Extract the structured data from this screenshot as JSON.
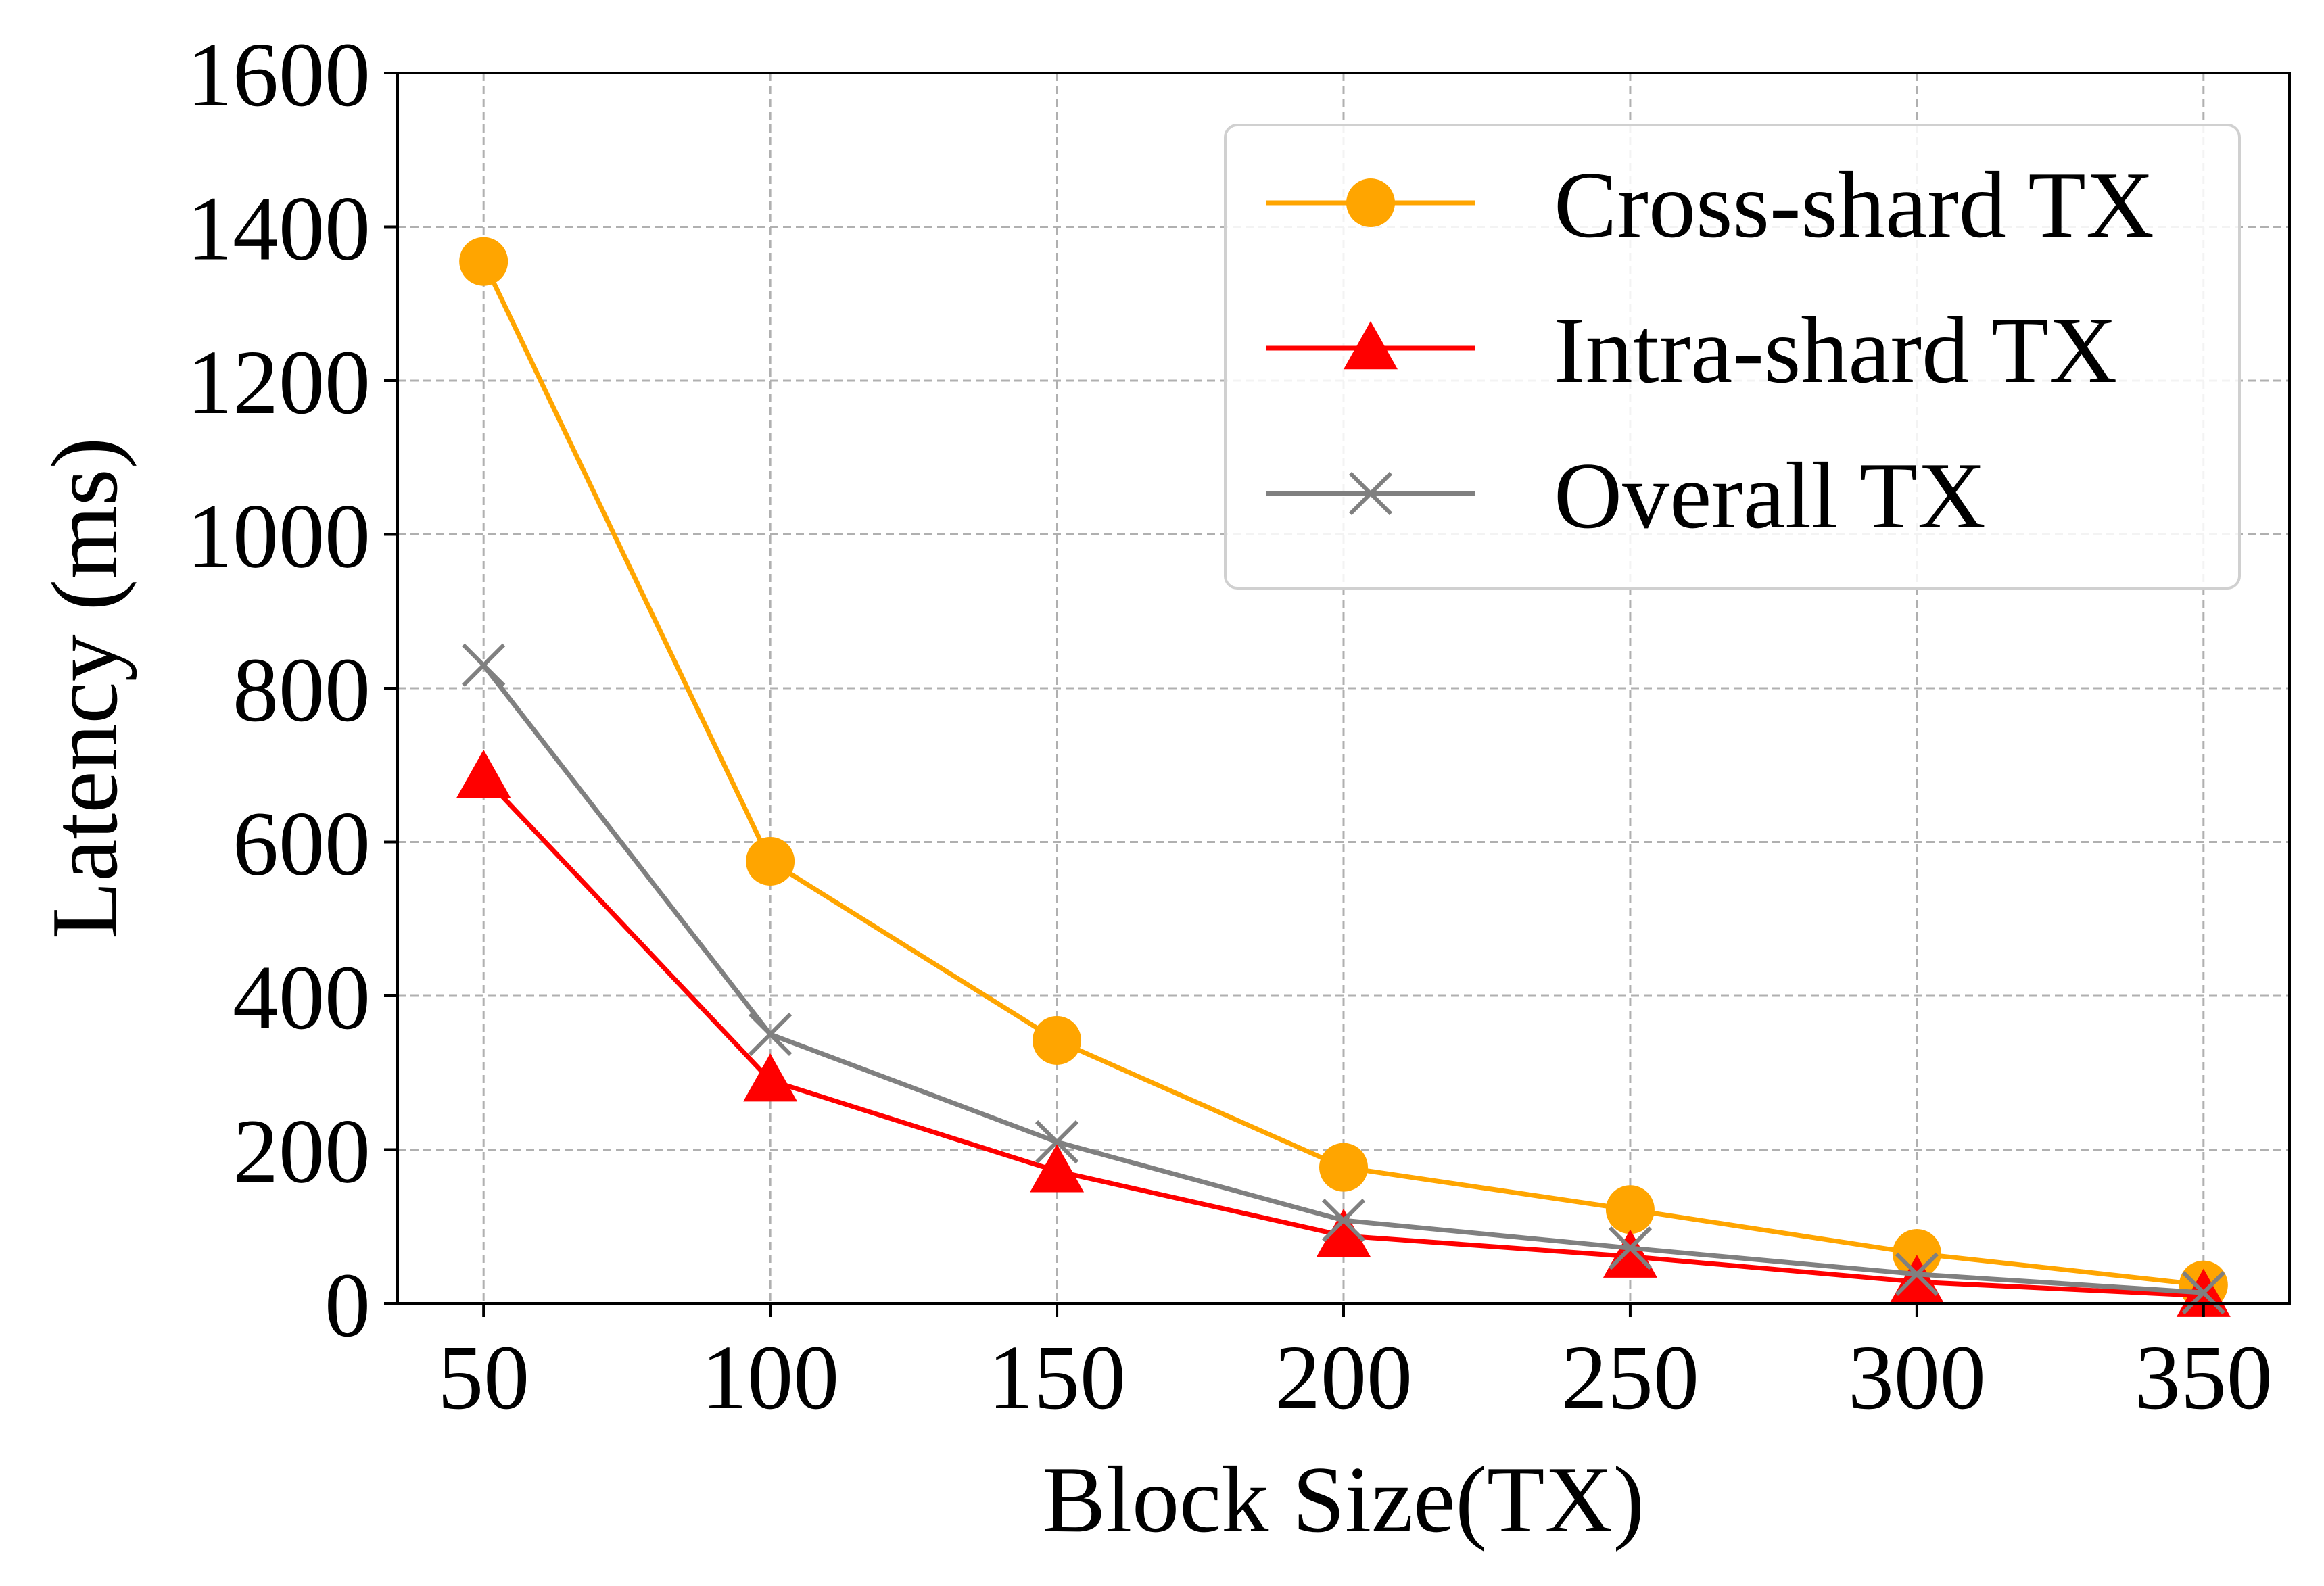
{
  "chart_data": {
    "type": "line",
    "title": "",
    "xlabel": "Block Size(TX)",
    "ylabel": "Latency (ms)",
    "x": [
      50,
      100,
      150,
      200,
      250,
      300,
      350
    ],
    "xlim": [
      35,
      365
    ],
    "ylim": [
      0,
      1600
    ],
    "xticks": [
      "50",
      "100",
      "150",
      "200",
      "250",
      "300",
      "350"
    ],
    "yticks": [
      "0",
      "200",
      "400",
      "600",
      "800",
      "1000",
      "1200",
      "1400",
      "1600"
    ],
    "grid": true,
    "legend_position": "top-right",
    "series": [
      {
        "name": "Cross-shard TX",
        "marker": "circle",
        "color": "#FFA500",
        "values": [
          1355,
          575,
          342,
          177,
          122,
          65,
          24
        ]
      },
      {
        "name": "Intra-shard TX",
        "marker": "triangle",
        "color": "#FF0000",
        "values": [
          685,
          290,
          172,
          88,
          61,
          28,
          10
        ]
      },
      {
        "name": "Overall TX",
        "marker": "x",
        "color": "#808080",
        "values": [
          830,
          350,
          210,
          108,
          72,
          38,
          14
        ]
      }
    ]
  }
}
